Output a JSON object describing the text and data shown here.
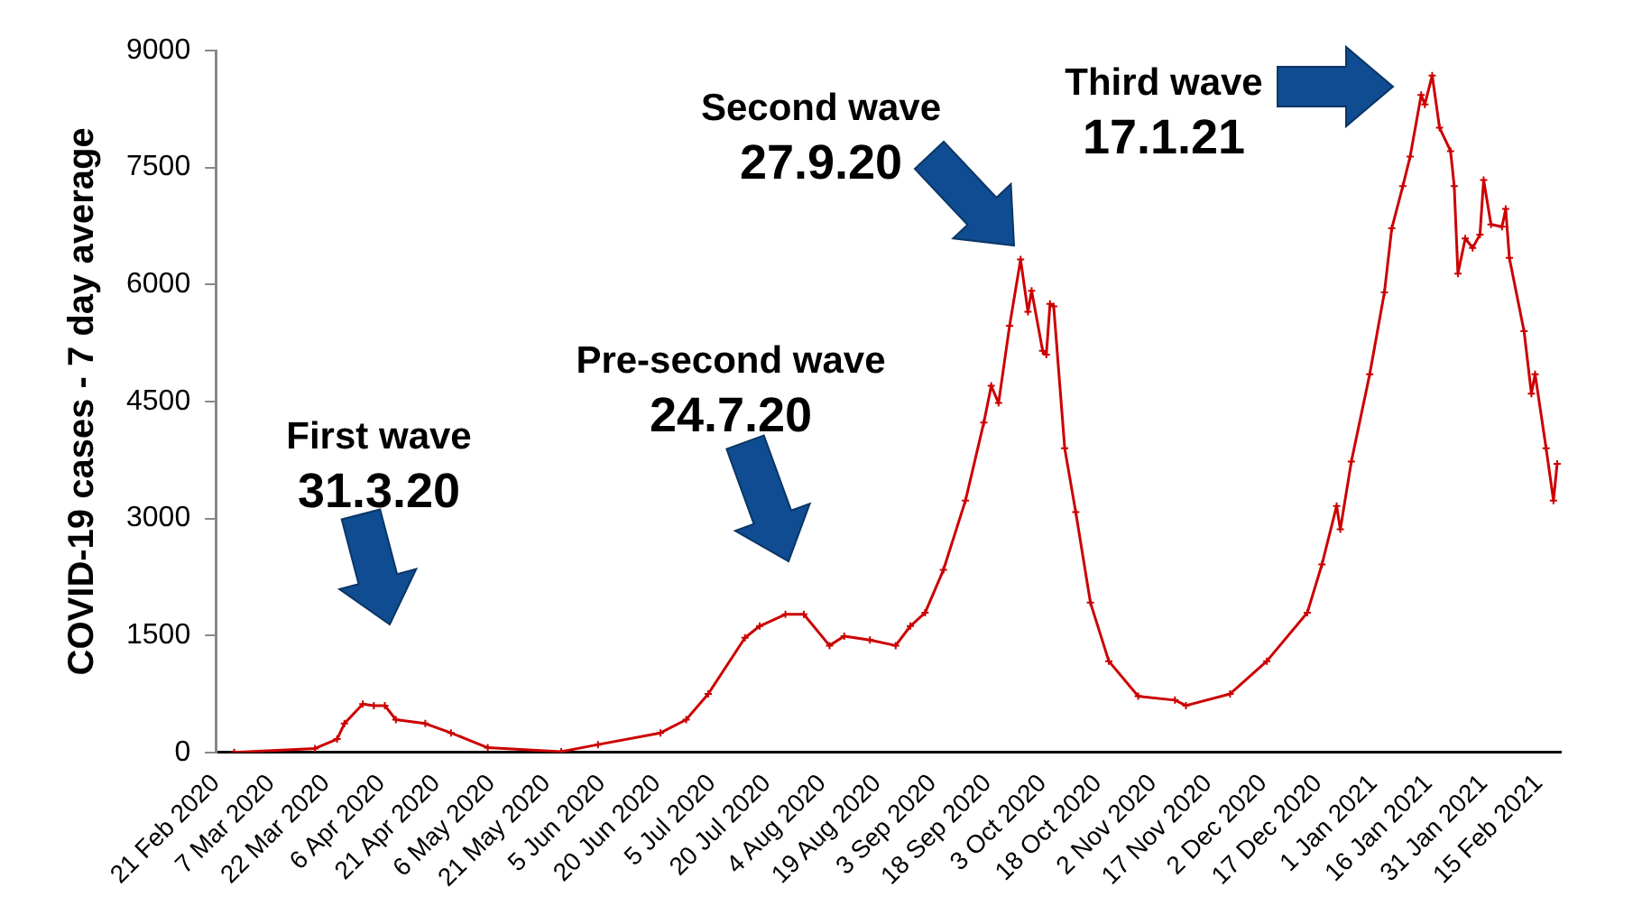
{
  "chart_data": {
    "type": "line",
    "ylabel": "COVID-19 cases - 7 day average",
    "x": [
      "2020-02-26",
      "2020-03-19",
      "2020-03-25",
      "2020-03-27",
      "2020-04-01",
      "2020-04-04",
      "2020-04-07",
      "2020-04-10",
      "2020-04-18",
      "2020-04-25",
      "2020-05-05",
      "2020-05-25",
      "2020-06-04",
      "2020-06-21",
      "2020-06-28",
      "2020-07-04",
      "2020-07-14",
      "2020-07-18",
      "2020-07-25",
      "2020-07-30",
      "2020-08-06",
      "2020-08-10",
      "2020-08-17",
      "2020-08-24",
      "2020-08-28",
      "2020-09-01",
      "2020-09-06",
      "2020-09-12",
      "2020-09-17",
      "2020-09-19",
      "2020-09-21",
      "2020-09-24",
      "2020-09-27",
      "2020-09-29",
      "2020-09-30",
      "2020-10-03",
      "2020-10-04",
      "2020-10-05",
      "2020-10-06",
      "2020-10-09",
      "2020-10-12",
      "2020-10-16",
      "2020-10-21",
      "2020-10-29",
      "2020-11-08",
      "2020-11-11",
      "2020-11-23",
      "2020-12-03",
      "2020-12-14",
      "2020-12-18",
      "2020-12-22",
      "2020-12-23",
      "2020-12-26",
      "2020-12-31",
      "2021-01-04",
      "2021-01-06",
      "2021-01-09",
      "2021-01-11",
      "2021-01-14",
      "2021-01-15",
      "2021-01-17",
      "2021-01-19",
      "2021-01-22",
      "2021-01-23",
      "2021-01-24",
      "2021-01-26",
      "2021-01-28",
      "2021-01-30",
      "2021-01-31",
      "2021-02-02",
      "2021-02-05",
      "2021-02-06",
      "2021-02-07",
      "2021-02-11",
      "2021-02-13",
      "2021-02-14",
      "2021-02-17",
      "2021-02-19",
      "2021-02-20"
    ],
    "series": [
      {
        "color": "#cc0000",
        "values": [
          0,
          50,
          170,
          370,
          620,
          600,
          600,
          420,
          370,
          250,
          60,
          10,
          100,
          250,
          420,
          750,
          1470,
          1620,
          1770,
          1770,
          1370,
          1490,
          1440,
          1370,
          1620,
          1790,
          2340,
          3230,
          4230,
          4700,
          4480,
          5470,
          6320,
          5650,
          5920,
          5150,
          5100,
          5750,
          5720,
          3900,
          3080,
          1920,
          1170,
          720,
          670,
          600,
          750,
          1170,
          1790,
          2410,
          3160,
          2860,
          3730,
          4850,
          5900,
          6720,
          7260,
          7640,
          8430,
          8310,
          8680,
          8010,
          7710,
          7260,
          6140,
          6590,
          6470,
          6640,
          7340,
          6770,
          6740,
          6970,
          6340,
          5400,
          4600,
          4850,
          3900,
          3230,
          3700
        ]
      }
    ],
    "xlim": [
      "2020-02-21",
      "2021-02-21"
    ],
    "xticks": [
      {
        "value": "2020-02-21",
        "label": "21 Feb 2020"
      },
      {
        "value": "2020-03-07",
        "label": "7 Mar 2020"
      },
      {
        "value": "2020-03-22",
        "label": "22 Mar 2020"
      },
      {
        "value": "2020-04-06",
        "label": "6 Apr 2020"
      },
      {
        "value": "2020-04-21",
        "label": "21 Apr 2020"
      },
      {
        "value": "2020-05-06",
        "label": "6 May 2020"
      },
      {
        "value": "2020-05-21",
        "label": "21 May 2020"
      },
      {
        "value": "2020-06-05",
        "label": "5 Jun 2020"
      },
      {
        "value": "2020-06-20",
        "label": "20 Jun 2020"
      },
      {
        "value": "2020-07-05",
        "label": "5 Jul 2020"
      },
      {
        "value": "2020-07-20",
        "label": "20 Jul 2020"
      },
      {
        "value": "2020-08-04",
        "label": "4 Aug 2020"
      },
      {
        "value": "2020-08-19",
        "label": "19 Aug 2020"
      },
      {
        "value": "2020-09-03",
        "label": "3 Sep 2020"
      },
      {
        "value": "2020-09-18",
        "label": "18 Sep 2020"
      },
      {
        "value": "2020-10-03",
        "label": "3 Oct 2020"
      },
      {
        "value": "2020-10-18",
        "label": "18 Oct 2020"
      },
      {
        "value": "2020-11-02",
        "label": "2 Nov 2020"
      },
      {
        "value": "2020-11-17",
        "label": "17 Nov 2020"
      },
      {
        "value": "2020-12-02",
        "label": "2 Dec 2020"
      },
      {
        "value": "2020-12-17",
        "label": "17 Dec 2020"
      },
      {
        "value": "2021-01-01",
        "label": "1 Jan 2021"
      },
      {
        "value": "2021-01-16",
        "label": "16 Jan 2021"
      },
      {
        "value": "2021-01-31",
        "label": "31 Jan 2021"
      },
      {
        "value": "2021-02-15",
        "label": "15 Feb 2021"
      }
    ],
    "ylim": [
      0,
      9000
    ],
    "yticks": [
      0,
      1500,
      3000,
      4500,
      6000,
      7500,
      9000
    ],
    "grid": false,
    "legend": false,
    "marker": "cross",
    "line_style": "solid",
    "annotations": [
      "First wave\n31.3.20",
      "Pre-second wave\n24.7.20",
      "Second wave\n27.9.20",
      "Third wave\n17.1.21"
    ]
  }
}
